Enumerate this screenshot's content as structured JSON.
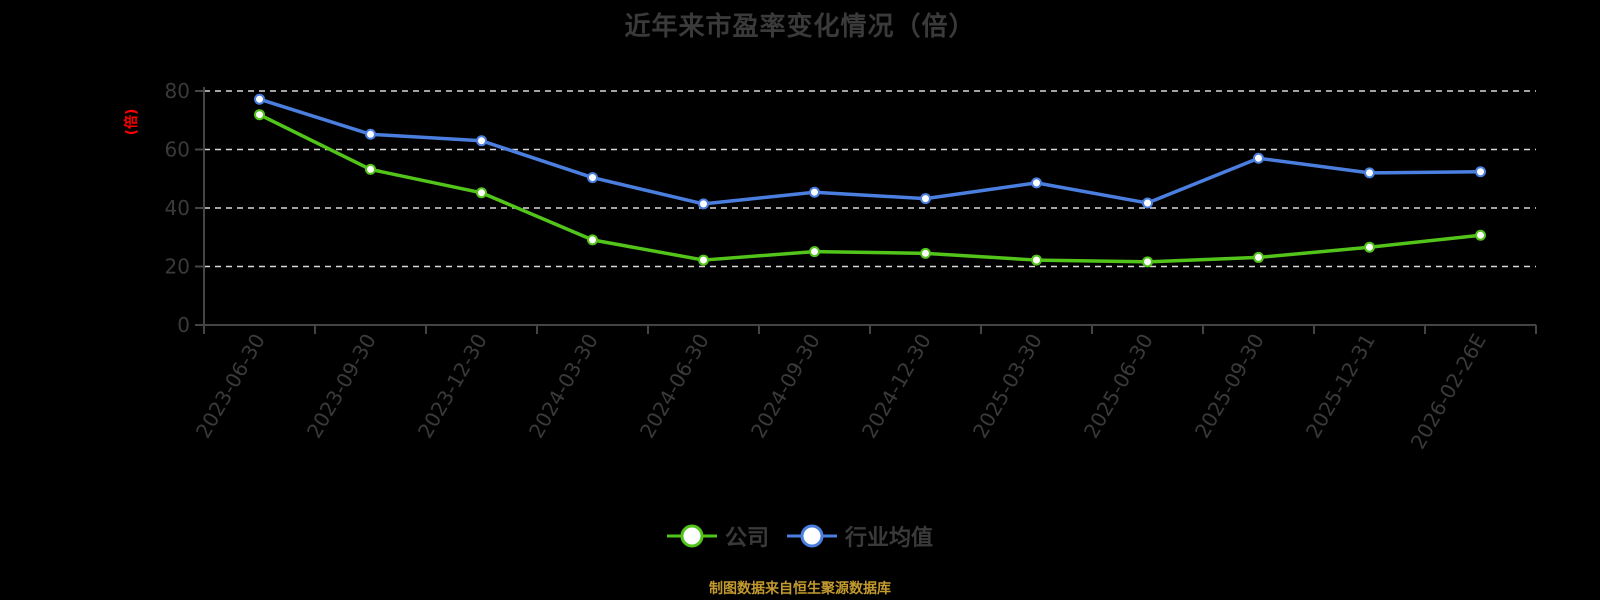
{
  "title": "近年来市盈率变化情况（倍）",
  "footer": "制图数据来自恒生聚源数据库",
  "colors": {
    "company": "#52c41a",
    "industry": "#4a7fe0",
    "ylabel": "#ff0000",
    "footer": "#c39a2e",
    "text": "#3a3a3a"
  },
  "legend": [
    {
      "label": "公司",
      "color": "#52c41a"
    },
    {
      "label": "行业均值",
      "color": "#4a7fe0"
    }
  ],
  "chart_data": {
    "type": "line",
    "title": "近年来市盈率变化情况（倍）",
    "xlabel": "",
    "ylabel": "(倍)",
    "ylim": [
      0,
      80
    ],
    "yticks": [
      0,
      20,
      40,
      60,
      80
    ],
    "grid": true,
    "legend_position": "bottom",
    "categories": [
      "2023-06-30",
      "2023-09-30",
      "2023-12-30",
      "2024-03-30",
      "2024-06-30",
      "2024-09-30",
      "2024-12-30",
      "2025-03-30",
      "2025-06-30",
      "2025-09-30",
      "2025-12-31",
      "2026-02-26E"
    ],
    "series": [
      {
        "name": "公司",
        "color": "#52c41a",
        "values": [
          71.9,
          53.2,
          45.2,
          29.1,
          22.2,
          25.1,
          24.5,
          22.2,
          21.6,
          23.1,
          26.6,
          30.7
        ]
      },
      {
        "name": "行业均值",
        "color": "#4a7fe0",
        "values": [
          77.2,
          65.2,
          63.0,
          50.4,
          41.4,
          45.4,
          43.2,
          48.6,
          41.7,
          57.0,
          52.0,
          52.4
        ]
      }
    ]
  }
}
